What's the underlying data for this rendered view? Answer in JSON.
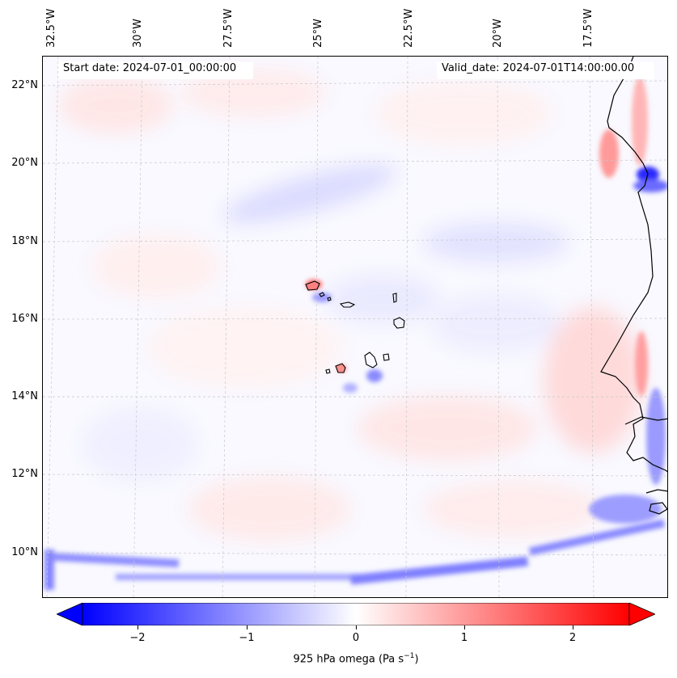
{
  "map": {
    "header": {
      "start_date": "Start date: 2024-07-01_00:00:00",
      "valid_date": "Valid_date: 2024-07-01T14:00:00.00"
    },
    "longitude_labels": [
      "32.5°W",
      "30°W",
      "27.5°W",
      "25°W",
      "22.5°W",
      "20°W",
      "17.5°W"
    ],
    "latitude_labels": [
      "22°N",
      "20°N",
      "18°N",
      "16°N",
      "14°N",
      "12°N",
      "10°N"
    ],
    "field": "925 hPa omega",
    "colors": {
      "negative": "#0000ff",
      "neutral": "#ffffff",
      "positive": "#ff0000",
      "coastline": "#000000",
      "gridline": "#cccccc"
    },
    "regions": [
      "Cape Verde islands",
      "West African coast"
    ]
  },
  "colorbar": {
    "ticks": [
      "−2",
      "−1",
      "0",
      "1",
      "2"
    ],
    "tick_values": [
      -2,
      -1,
      0,
      1,
      2
    ],
    "range": [
      -2.5,
      2.5
    ],
    "extend": "both",
    "label_text": "925 hPa omega (Pa s",
    "label_sup": "−1",
    "label_close": ")"
  }
}
